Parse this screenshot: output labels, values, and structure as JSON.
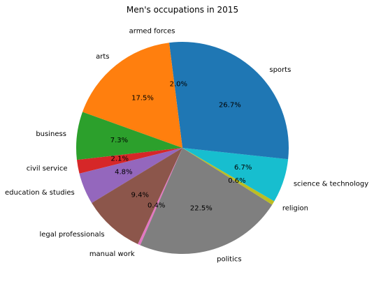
{
  "chart_data": {
    "type": "pie",
    "title": "Men's occupations in 2015",
    "start_angle_deg": 90,
    "direction": "counterclockwise",
    "slices": [
      {
        "label": "armed forces",
        "value": 2.0,
        "pct_label": "2.0%",
        "color": "#1f77b4"
      },
      {
        "label": "arts",
        "value": 17.5,
        "pct_label": "17.5%",
        "color": "#ff7f0e"
      },
      {
        "label": "business",
        "value": 7.3,
        "pct_label": "7.3%",
        "color": "#2ca02c"
      },
      {
        "label": "civil service",
        "value": 2.1,
        "pct_label": "2.1%",
        "color": "#d62728"
      },
      {
        "label": "education & studies",
        "value": 4.8,
        "pct_label": "4.8%",
        "color": "#9467bd"
      },
      {
        "label": "legal professionals",
        "value": 9.4,
        "pct_label": "9.4%",
        "color": "#8c564b"
      },
      {
        "label": "manual work",
        "value": 0.4,
        "pct_label": "0.4%",
        "color": "#e377c2"
      },
      {
        "label": "politics",
        "value": 22.5,
        "pct_label": "22.5%",
        "color": "#7f7f7f"
      },
      {
        "label": "religion",
        "value": 0.6,
        "pct_label": "0.6%",
        "color": "#bcbd22"
      },
      {
        "label": "science & technology",
        "value": 6.7,
        "pct_label": "6.7%",
        "color": "#17becf"
      },
      {
        "label": "sports",
        "value": 26.7,
        "pct_label": "26.7%",
        "color": "#1f77b4"
      }
    ]
  }
}
